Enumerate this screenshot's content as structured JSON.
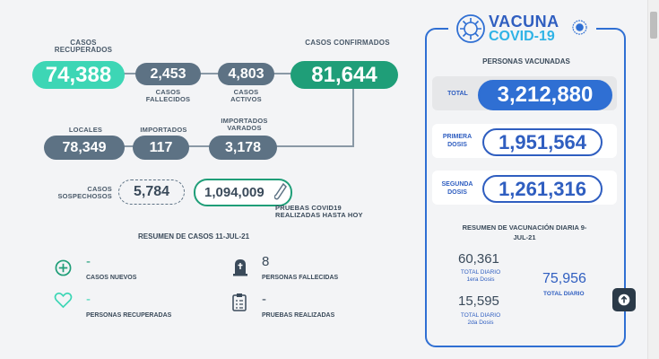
{
  "cases": {
    "recovered": {
      "label": "CASOS RECUPERADOS",
      "value": "74,388"
    },
    "deceased": {
      "label": "CASOS FALLECIDOS",
      "value": "2,453"
    },
    "active": {
      "label": "CASOS ACTIVOS",
      "value": "4,803"
    },
    "confirmed": {
      "label": "CASOS CONFIRMADOS",
      "value": "81,644"
    },
    "local": {
      "label": "LOCALES",
      "value": "78,349"
    },
    "imported": {
      "label": "IMPORTADOS",
      "value": "117"
    },
    "stranded": {
      "label": "IMPORTADOS VARADOS",
      "value": "3,178"
    },
    "suspect": {
      "label": "CASOS SOSPECHOSOS",
      "value": "5,784"
    },
    "tests": {
      "label": "PRUEBAS COVID19 REALIZADAS HASTA HOY",
      "value": "1,094,009"
    }
  },
  "summary": {
    "title": "RESUMEN DE CASOS 11-JUL-21",
    "new_cases": {
      "value": "-",
      "label": "CASOS NUEVOS"
    },
    "deaths": {
      "value": "8",
      "label": "PERSONAS FALLECIDAS"
    },
    "recovered": {
      "value": "-",
      "label": "PERSONAS RECUPERADAS"
    },
    "tests": {
      "value": "-",
      "label": "PRUEBAS REALIZADAS"
    }
  },
  "vaccine": {
    "logo_top": "VACUNA",
    "logo_bottom": "COVID-19",
    "heading": "PERSONAS VACUNADAS",
    "total_label": "TOTAL",
    "total_value": "3,212,880",
    "first_label": "PRIMERA DOSIS",
    "first_value": "1,951,564",
    "second_label": "SEGUNDA DOSIS",
    "second_value": "1,261,316",
    "daily_title": "RESUMEN DE VACUNACIÓN DIARIA 9-JUL-21",
    "daily_first_value": "60,361",
    "daily_first_label": "TOTAL DIARIO",
    "daily_first_sub": "1era Dosis",
    "daily_second_value": "15,595",
    "daily_second_label": "TOTAL DIARIO",
    "daily_second_sub": "2da Dosis",
    "daily_total_value": "75,956",
    "daily_total_label": "TOTAL DIARIO"
  },
  "colors": {
    "teal": "#3dd6b5",
    "green": "#1f9e78",
    "gray": "#5d7284",
    "blue": "#2f5ec0"
  }
}
